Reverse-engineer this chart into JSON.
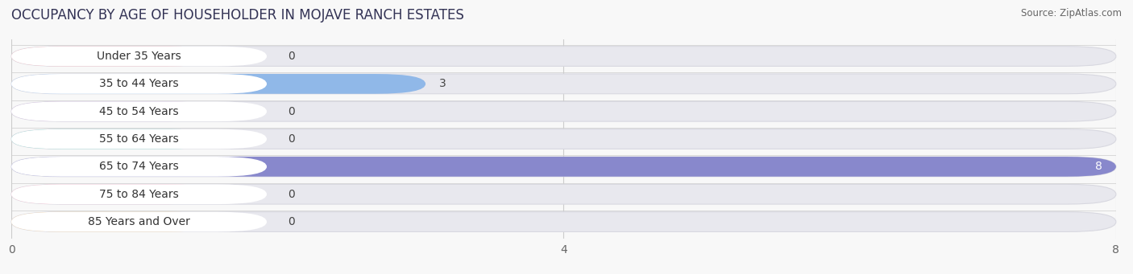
{
  "title": "OCCUPANCY BY AGE OF HOUSEHOLDER IN MOJAVE RANCH ESTATES",
  "source": "Source: ZipAtlas.com",
  "categories": [
    "Under 35 Years",
    "35 to 44 Years",
    "45 to 54 Years",
    "55 to 64 Years",
    "65 to 74 Years",
    "75 to 84 Years",
    "85 Years and Over"
  ],
  "values": [
    0,
    3,
    0,
    0,
    8,
    0,
    0
  ],
  "bar_colors": [
    "#f0a0a8",
    "#90b8e8",
    "#c0a0d0",
    "#70c8c0",
    "#8888cc",
    "#f8aac0",
    "#f0c890"
  ],
  "bar_bg_color": "#e8e8ee",
  "white_label_bg": "#ffffff",
  "xlim_max": 8,
  "xticks": [
    0,
    4,
    8
  ],
  "title_fontsize": 12,
  "label_fontsize": 10,
  "tick_fontsize": 10,
  "bg_color": "#f8f8f8",
  "value_color_dark": "#444444",
  "value_color_white": "#ffffff"
}
